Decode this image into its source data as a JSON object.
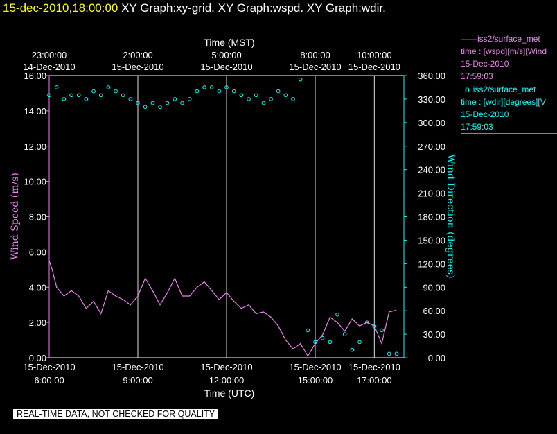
{
  "title": {
    "datetime": "15-dec-2010,18:00:00",
    "graphs": "XY Graph:xy-grid.  XY Graph:wspd.  XY Graph:wdir."
  },
  "legend": [
    {
      "symbol": "——",
      "label": "iss2/surface_met",
      "field": "time : [wspd][m/s][Wind",
      "date": "15-Dec-2010",
      "time": "17:59:03",
      "color": "#ee82ee"
    },
    {
      "symbol": "o",
      "label": "iss2/surface_met",
      "field": "time : [wdir][degrees][V",
      "date": "15-Dec-2010",
      "time": "17:59:03",
      "color": "#00ffff"
    }
  ],
  "quality_note": "REAL-TIME DATA, NOT CHECKED FOR QUALITY",
  "chart_data": {
    "type": "line",
    "top_axis": {
      "label": "Time (MST)",
      "ticks": [
        {
          "time": "23:00:00",
          "date": "14-Dec-2010",
          "utc_hour": 6
        },
        {
          "time": "2:00:00",
          "date": "15-Dec-2010",
          "utc_hour": 9
        },
        {
          "time": "5:00:00",
          "date": "15-Dec-2010",
          "utc_hour": 12
        },
        {
          "time": "8:00:00",
          "date": "15-Dec-2010",
          "utc_hour": 15
        },
        {
          "time": "10:00:00",
          "date": "15-Dec-2010",
          "utc_hour": 17
        }
      ]
    },
    "bottom_axis": {
      "label": "Time (UTC)",
      "ticks": [
        {
          "date": "15-Dec-2010",
          "time": "6:00:00",
          "utc_hour": 6
        },
        {
          "date": "15-Dec-2010",
          "time": "9:00:00",
          "utc_hour": 9
        },
        {
          "date": "15-Dec-2010",
          "time": "12:00:00",
          "utc_hour": 12
        },
        {
          "date": "15-Dec-2010",
          "time": "15:00:00",
          "utc_hour": 15
        },
        {
          "date": "15-Dec-2010",
          "time": "17:00:00",
          "utc_hour": 17
        }
      ]
    },
    "xlim_utc_hours": [
      6,
      18
    ],
    "grid_lines_utc_hours": [
      9,
      12,
      15,
      17
    ],
    "left_axis": {
      "label": "Wind Speed (m/s)",
      "ylim": [
        0,
        16
      ],
      "ticks": [
        "0.00",
        "2.00",
        "4.00",
        "6.00",
        "8.00",
        "10.00",
        "12.00",
        "14.00",
        "16.00"
      ],
      "color": "#ee82ee"
    },
    "right_axis": {
      "label": "Wind Direction (degrees)",
      "ylim": [
        0,
        360
      ],
      "ticks": [
        "0.00",
        "30.00",
        "60.00",
        "90.00",
        "120.00",
        "150.00",
        "180.00",
        "210.00",
        "240.00",
        "270.00",
        "300.00",
        "330.00",
        "360.00"
      ],
      "color": "#00ffff"
    },
    "series": [
      {
        "name": "iss2/surface_met wspd",
        "axis": "left",
        "style": "line",
        "color": "#ee82ee",
        "x_utc_hours": [
          6.0,
          6.1,
          6.25,
          6.5,
          6.75,
          7.0,
          7.25,
          7.5,
          7.75,
          8.0,
          8.25,
          8.5,
          8.75,
          9.0,
          9.25,
          9.5,
          9.75,
          10.0,
          10.25,
          10.5,
          10.75,
          11.0,
          11.25,
          11.5,
          11.75,
          12.0,
          12.25,
          12.5,
          12.75,
          13.0,
          13.25,
          13.5,
          13.75,
          14.0,
          14.25,
          14.5,
          14.75,
          15.0,
          15.25,
          15.5,
          15.75,
          16.0,
          16.25,
          16.5,
          16.75,
          17.0,
          17.25,
          17.5,
          17.75
        ],
        "values": [
          5.5,
          5.0,
          4.0,
          3.5,
          3.8,
          3.5,
          2.8,
          3.2,
          2.5,
          3.8,
          3.5,
          3.3,
          3.0,
          3.5,
          4.5,
          3.8,
          3.0,
          3.7,
          4.5,
          3.5,
          3.5,
          4.0,
          4.3,
          3.8,
          3.3,
          3.7,
          3.2,
          2.8,
          3.0,
          2.5,
          2.6,
          2.3,
          1.8,
          1.0,
          0.5,
          0.8,
          0.1,
          0.8,
          1.3,
          2.3,
          2.0,
          1.5,
          2.2,
          1.8,
          2.0,
          1.8,
          0.8,
          2.6,
          2.7
        ]
      },
      {
        "name": "iss2/surface_met wdir",
        "axis": "right",
        "style": "scatter",
        "color": "#00ffff",
        "x_utc_hours": [
          6.0,
          6.25,
          6.5,
          6.75,
          7.0,
          7.25,
          7.5,
          7.75,
          8.0,
          8.25,
          8.5,
          8.75,
          9.0,
          9.25,
          9.5,
          9.75,
          10.0,
          10.25,
          10.5,
          10.75,
          11.0,
          11.25,
          11.5,
          11.75,
          12.0,
          12.25,
          12.5,
          12.75,
          13.0,
          13.25,
          13.5,
          13.75,
          14.0,
          14.25,
          14.5,
          14.75,
          15.0,
          15.25,
          15.5,
          15.75,
          16.0,
          16.25,
          16.5,
          16.75,
          17.0,
          17.25,
          17.5,
          17.75
        ],
        "values": [
          335,
          345,
          330,
          335,
          335,
          330,
          340,
          335,
          345,
          340,
          335,
          330,
          325,
          320,
          325,
          320,
          325,
          330,
          325,
          330,
          340,
          345,
          345,
          340,
          345,
          340,
          335,
          330,
          335,
          325,
          330,
          340,
          335,
          330,
          355,
          35,
          20,
          25,
          20,
          55,
          30,
          10,
          20,
          45,
          40,
          35,
          5,
          5
        ]
      }
    ]
  }
}
